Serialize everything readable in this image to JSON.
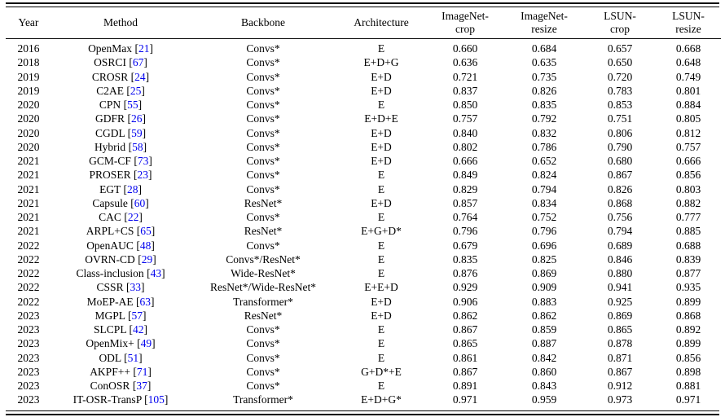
{
  "table": {
    "citation_color": "#0000ee",
    "text_color": "#000000",
    "cite_open": "[",
    "cite_close": "]",
    "headers": [
      {
        "l1": "Year",
        "l2": ""
      },
      {
        "l1": "Method",
        "l2": ""
      },
      {
        "l1": "Backbone",
        "l2": ""
      },
      {
        "l1": "Architecture",
        "l2": ""
      },
      {
        "l1": "ImageNet-",
        "l2": "crop"
      },
      {
        "l1": "ImageNet-",
        "l2": "resize"
      },
      {
        "l1": "LSUN-",
        "l2": "crop"
      },
      {
        "l1": "LSUN-",
        "l2": "resize"
      }
    ],
    "rows": [
      {
        "year": "2016",
        "method": "OpenMax",
        "cite": "21",
        "backbone": "Convs*",
        "architecture": "E",
        "values": [
          "0.660",
          "0.684",
          "0.657",
          "0.668"
        ]
      },
      {
        "year": "2018",
        "method": "OSRCI",
        "cite": "67",
        "backbone": "Convs*",
        "architecture": "E+D+G",
        "values": [
          "0.636",
          "0.635",
          "0.650",
          "0.648"
        ]
      },
      {
        "year": "2019",
        "method": "CROSR",
        "cite": "24",
        "backbone": "Convs*",
        "architecture": "E+D",
        "values": [
          "0.721",
          "0.735",
          "0.720",
          "0.749"
        ]
      },
      {
        "year": "2019",
        "method": "C2AE",
        "cite": "25",
        "backbone": "Convs*",
        "architecture": "E+D",
        "values": [
          "0.837",
          "0.826",
          "0.783",
          "0.801"
        ]
      },
      {
        "year": "2020",
        "method": "CPN",
        "cite": "55",
        "backbone": "Convs*",
        "architecture": "E",
        "values": [
          "0.850",
          "0.835",
          "0.853",
          "0.884"
        ]
      },
      {
        "year": "2020",
        "method": "GDFR",
        "cite": "26",
        "backbone": "Convs*",
        "architecture": "E+D+E",
        "values": [
          "0.757",
          "0.792",
          "0.751",
          "0.805"
        ]
      },
      {
        "year": "2020",
        "method": "CGDL",
        "cite": "59",
        "backbone": "Convs*",
        "architecture": "E+D",
        "values": [
          "0.840",
          "0.832",
          "0.806",
          "0.812"
        ]
      },
      {
        "year": "2020",
        "method": "Hybrid",
        "cite": "58",
        "backbone": "Convs*",
        "architecture": "E+D",
        "values": [
          "0.802",
          "0.786",
          "0.790",
          "0.757"
        ]
      },
      {
        "year": "2021",
        "method": "GCM-CF",
        "cite": "73",
        "backbone": "Convs*",
        "architecture": "E+D",
        "values": [
          "0.666",
          "0.652",
          "0.680",
          "0.666"
        ]
      },
      {
        "year": "2021",
        "method": "PROSER",
        "cite": "23",
        "backbone": "Convs*",
        "architecture": "E",
        "values": [
          "0.849",
          "0.824",
          "0.867",
          "0.856"
        ]
      },
      {
        "year": "2021",
        "method": "EGT",
        "cite": "28",
        "backbone": "Convs*",
        "architecture": "E",
        "values": [
          "0.829",
          "0.794",
          "0.826",
          "0.803"
        ]
      },
      {
        "year": "2021",
        "method": "Capsule",
        "cite": "60",
        "backbone": "ResNet*",
        "architecture": "E+D",
        "values": [
          "0.857",
          "0.834",
          "0.868",
          "0.882"
        ]
      },
      {
        "year": "2021",
        "method": "CAC",
        "cite": "22",
        "backbone": "Convs*",
        "architecture": "E",
        "values": [
          "0.764",
          "0.752",
          "0.756",
          "0.777"
        ]
      },
      {
        "year": "2021",
        "method": "ARPL+CS",
        "cite": "65",
        "backbone": "ResNet*",
        "architecture": "E+G+D*",
        "values": [
          "0.796",
          "0.796",
          "0.794",
          "0.885"
        ]
      },
      {
        "year": "2022",
        "method": "OpenAUC",
        "cite": "48",
        "backbone": "Convs*",
        "architecture": "E",
        "values": [
          "0.679",
          "0.696",
          "0.689",
          "0.688"
        ]
      },
      {
        "year": "2022",
        "method": "OVRN-CD",
        "cite": "29",
        "backbone": "Convs*/ResNet*",
        "architecture": "E",
        "values": [
          "0.835",
          "0.825",
          "0.846",
          "0.839"
        ]
      },
      {
        "year": "2022",
        "method": "Class-inclusion",
        "cite": "43",
        "backbone": "Wide-ResNet*",
        "architecture": "E",
        "values": [
          "0.876",
          "0.869",
          "0.880",
          "0.877"
        ]
      },
      {
        "year": "2022",
        "method": "CSSR",
        "cite": "33",
        "backbone": "ResNet*/Wide-ResNet*",
        "architecture": "E+E+D",
        "values": [
          "0.929",
          "0.909",
          "0.941",
          "0.935"
        ]
      },
      {
        "year": "2022",
        "method": "MoEP-AE",
        "cite": "63",
        "backbone": "Transformer*",
        "architecture": "E+D",
        "values": [
          "0.906",
          "0.883",
          "0.925",
          "0.899"
        ]
      },
      {
        "year": "2023",
        "method": "MGPL",
        "cite": "57",
        "backbone": "ResNet*",
        "architecture": "E+D",
        "values": [
          "0.862",
          "0.862",
          "0.869",
          "0.868"
        ]
      },
      {
        "year": "2023",
        "method": "SLCPL",
        "cite": "42",
        "backbone": "Convs*",
        "architecture": "E",
        "values": [
          "0.867",
          "0.859",
          "0.865",
          "0.892"
        ]
      },
      {
        "year": "2023",
        "method": "OpenMix+",
        "cite": "49",
        "backbone": "Convs*",
        "architecture": "E",
        "values": [
          "0.865",
          "0.887",
          "0.878",
          "0.899"
        ]
      },
      {
        "year": "2023",
        "method": "ODL",
        "cite": "51",
        "backbone": "Convs*",
        "architecture": "E",
        "values": [
          "0.861",
          "0.842",
          "0.871",
          "0.856"
        ]
      },
      {
        "year": "2023",
        "method": "AKPF++",
        "cite": "71",
        "backbone": "Convs*",
        "architecture": "G+D*+E",
        "values": [
          "0.867",
          "0.860",
          "0.867",
          "0.898"
        ]
      },
      {
        "year": "2023",
        "method": "ConOSR",
        "cite": "37",
        "backbone": "Convs*",
        "architecture": "E",
        "values": [
          "0.891",
          "0.843",
          "0.912",
          "0.881"
        ]
      },
      {
        "year": "2023",
        "method": "IT-OSR-TransP",
        "cite": "105",
        "backbone": "Transformer*",
        "architecture": "E+D+G*",
        "values": [
          "0.971",
          "0.959",
          "0.973",
          "0.971"
        ]
      }
    ]
  }
}
